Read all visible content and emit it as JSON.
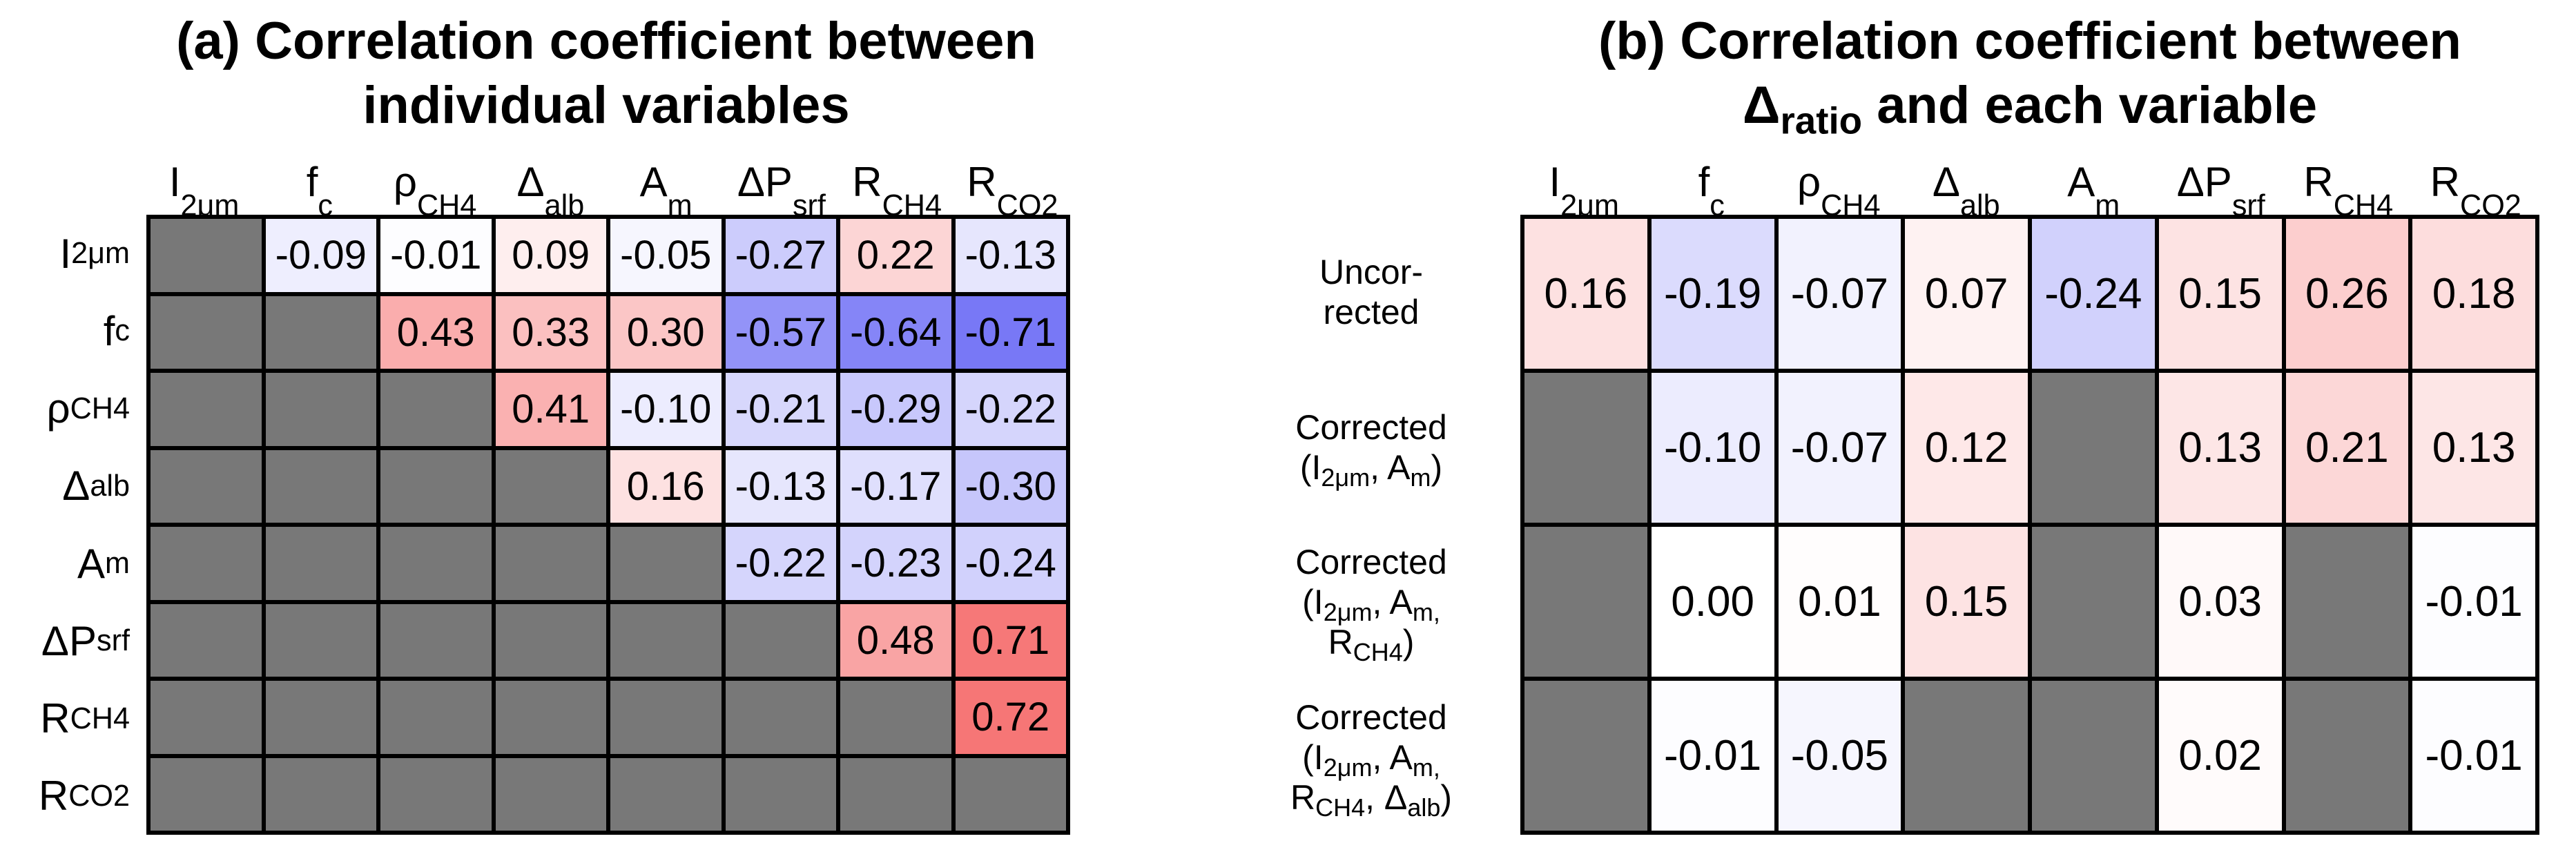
{
  "colors": {
    "background": "#ffffff",
    "masked_cell": "#787878",
    "grid_line": "#000000",
    "text": "#000000",
    "positive_strong_sample": "#f87b7b",
    "negative_strong_sample": "#7b7bee"
  },
  "headers_rich": [
    {
      "main": "I",
      "sub": "2μm"
    },
    {
      "main": "f",
      "sub": "c"
    },
    {
      "main": "ρ",
      "sub": "CH4"
    },
    {
      "main": "Δ",
      "sub": "alb"
    },
    {
      "main": "A",
      "sub": "m"
    },
    {
      "main": "ΔP",
      "sub": "srf"
    },
    {
      "main": "R",
      "sub": "CH4"
    },
    {
      "main": "R",
      "sub": "CO2"
    }
  ],
  "panel_a": {
    "title_line1": "(a) Correlation coefficient between",
    "title_line2": "individual variables"
  },
  "panel_b": {
    "title_line1": "(b) Correlation coefficient between",
    "title_line2": {
      "pre": "Δ",
      "sub": "ratio",
      "post": " and each variable"
    },
    "row_labels_rich": [
      {
        "lines": [
          [
            {
              "t": "Uncor-"
            }
          ],
          [
            {
              "t": "rected"
            }
          ]
        ]
      },
      {
        "lines": [
          [
            {
              "t": "Corrected"
            }
          ],
          [
            {
              "t": "(I"
            },
            {
              "s": "2μm"
            },
            {
              "t": ", A"
            },
            {
              "s": "m"
            },
            {
              "t": ")"
            }
          ]
        ]
      },
      {
        "lines": [
          [
            {
              "t": "Corrected"
            }
          ],
          [
            {
              "t": "(I"
            },
            {
              "s": "2μm"
            },
            {
              "t": ", A"
            },
            {
              "s": "m,"
            }
          ],
          [
            {
              "t": "R"
            },
            {
              "s": "CH4"
            },
            {
              "t": ")"
            }
          ]
        ]
      },
      {
        "lines": [
          [
            {
              "t": "Corrected"
            }
          ],
          [
            {
              "t": "(I"
            },
            {
              "s": "2μm"
            },
            {
              "t": ", A"
            },
            {
              "s": "m,"
            }
          ],
          [
            {
              "t": "R"
            },
            {
              "s": "CH4"
            },
            {
              "t": ", Δ"
            },
            {
              "s": "alb"
            },
            {
              "t": ")"
            }
          ]
        ]
      }
    ]
  },
  "chart_data": [
    {
      "type": "heatmap",
      "panel": "a",
      "title": "(a) Correlation coefficient between individual variables",
      "columns": [
        "I2μm",
        "fc",
        "ρCH4",
        "Δalb",
        "Am",
        "ΔPsrf",
        "RCH4",
        "RCO2"
      ],
      "rows": [
        "I2μm",
        "fc",
        "ρCH4",
        "Δalb",
        "Am",
        "ΔPsrf",
        "RCH4",
        "RCO2"
      ],
      "value_range": [
        -1,
        1
      ],
      "colormap": "blue-white-red",
      "masked": "gray",
      "matrix": [
        [
          null,
          -0.09,
          -0.01,
          0.09,
          -0.05,
          -0.27,
          0.22,
          -0.13
        ],
        [
          null,
          null,
          0.43,
          0.33,
          0.3,
          -0.57,
          -0.64,
          -0.71
        ],
        [
          null,
          null,
          null,
          0.41,
          -0.1,
          -0.21,
          -0.29,
          -0.22
        ],
        [
          null,
          null,
          null,
          null,
          0.16,
          -0.13,
          -0.17,
          -0.3
        ],
        [
          null,
          null,
          null,
          null,
          null,
          -0.22,
          -0.23,
          -0.24
        ],
        [
          null,
          null,
          null,
          null,
          null,
          null,
          0.48,
          0.71
        ],
        [
          null,
          null,
          null,
          null,
          null,
          null,
          null,
          0.72
        ],
        [
          null,
          null,
          null,
          null,
          null,
          null,
          null,
          null
        ]
      ]
    },
    {
      "type": "heatmap",
      "panel": "b",
      "title": "(b) Correlation coefficient between Δratio and each variable",
      "columns": [
        "I2μm",
        "fc",
        "ρCH4",
        "Δalb",
        "Am",
        "ΔPsrf",
        "RCH4",
        "RCO2"
      ],
      "rows": [
        "Uncorrected",
        "Corrected (I2μm, Am)",
        "Corrected (I2μm, Am, RCH4)",
        "Corrected (I2μm, Am, RCH4, Δalb)"
      ],
      "value_range": [
        -1,
        1
      ],
      "colormap": "blue-white-red",
      "masked": "gray",
      "matrix": [
        [
          0.16,
          -0.19,
          -0.07,
          0.07,
          -0.24,
          0.15,
          0.26,
          0.18
        ],
        [
          null,
          -0.1,
          -0.07,
          0.12,
          null,
          0.13,
          0.21,
          0.13
        ],
        [
          null,
          0.0,
          0.01,
          0.15,
          null,
          0.03,
          null,
          -0.01
        ],
        [
          null,
          -0.01,
          -0.05,
          null,
          null,
          0.02,
          null,
          -0.01
        ]
      ]
    }
  ]
}
